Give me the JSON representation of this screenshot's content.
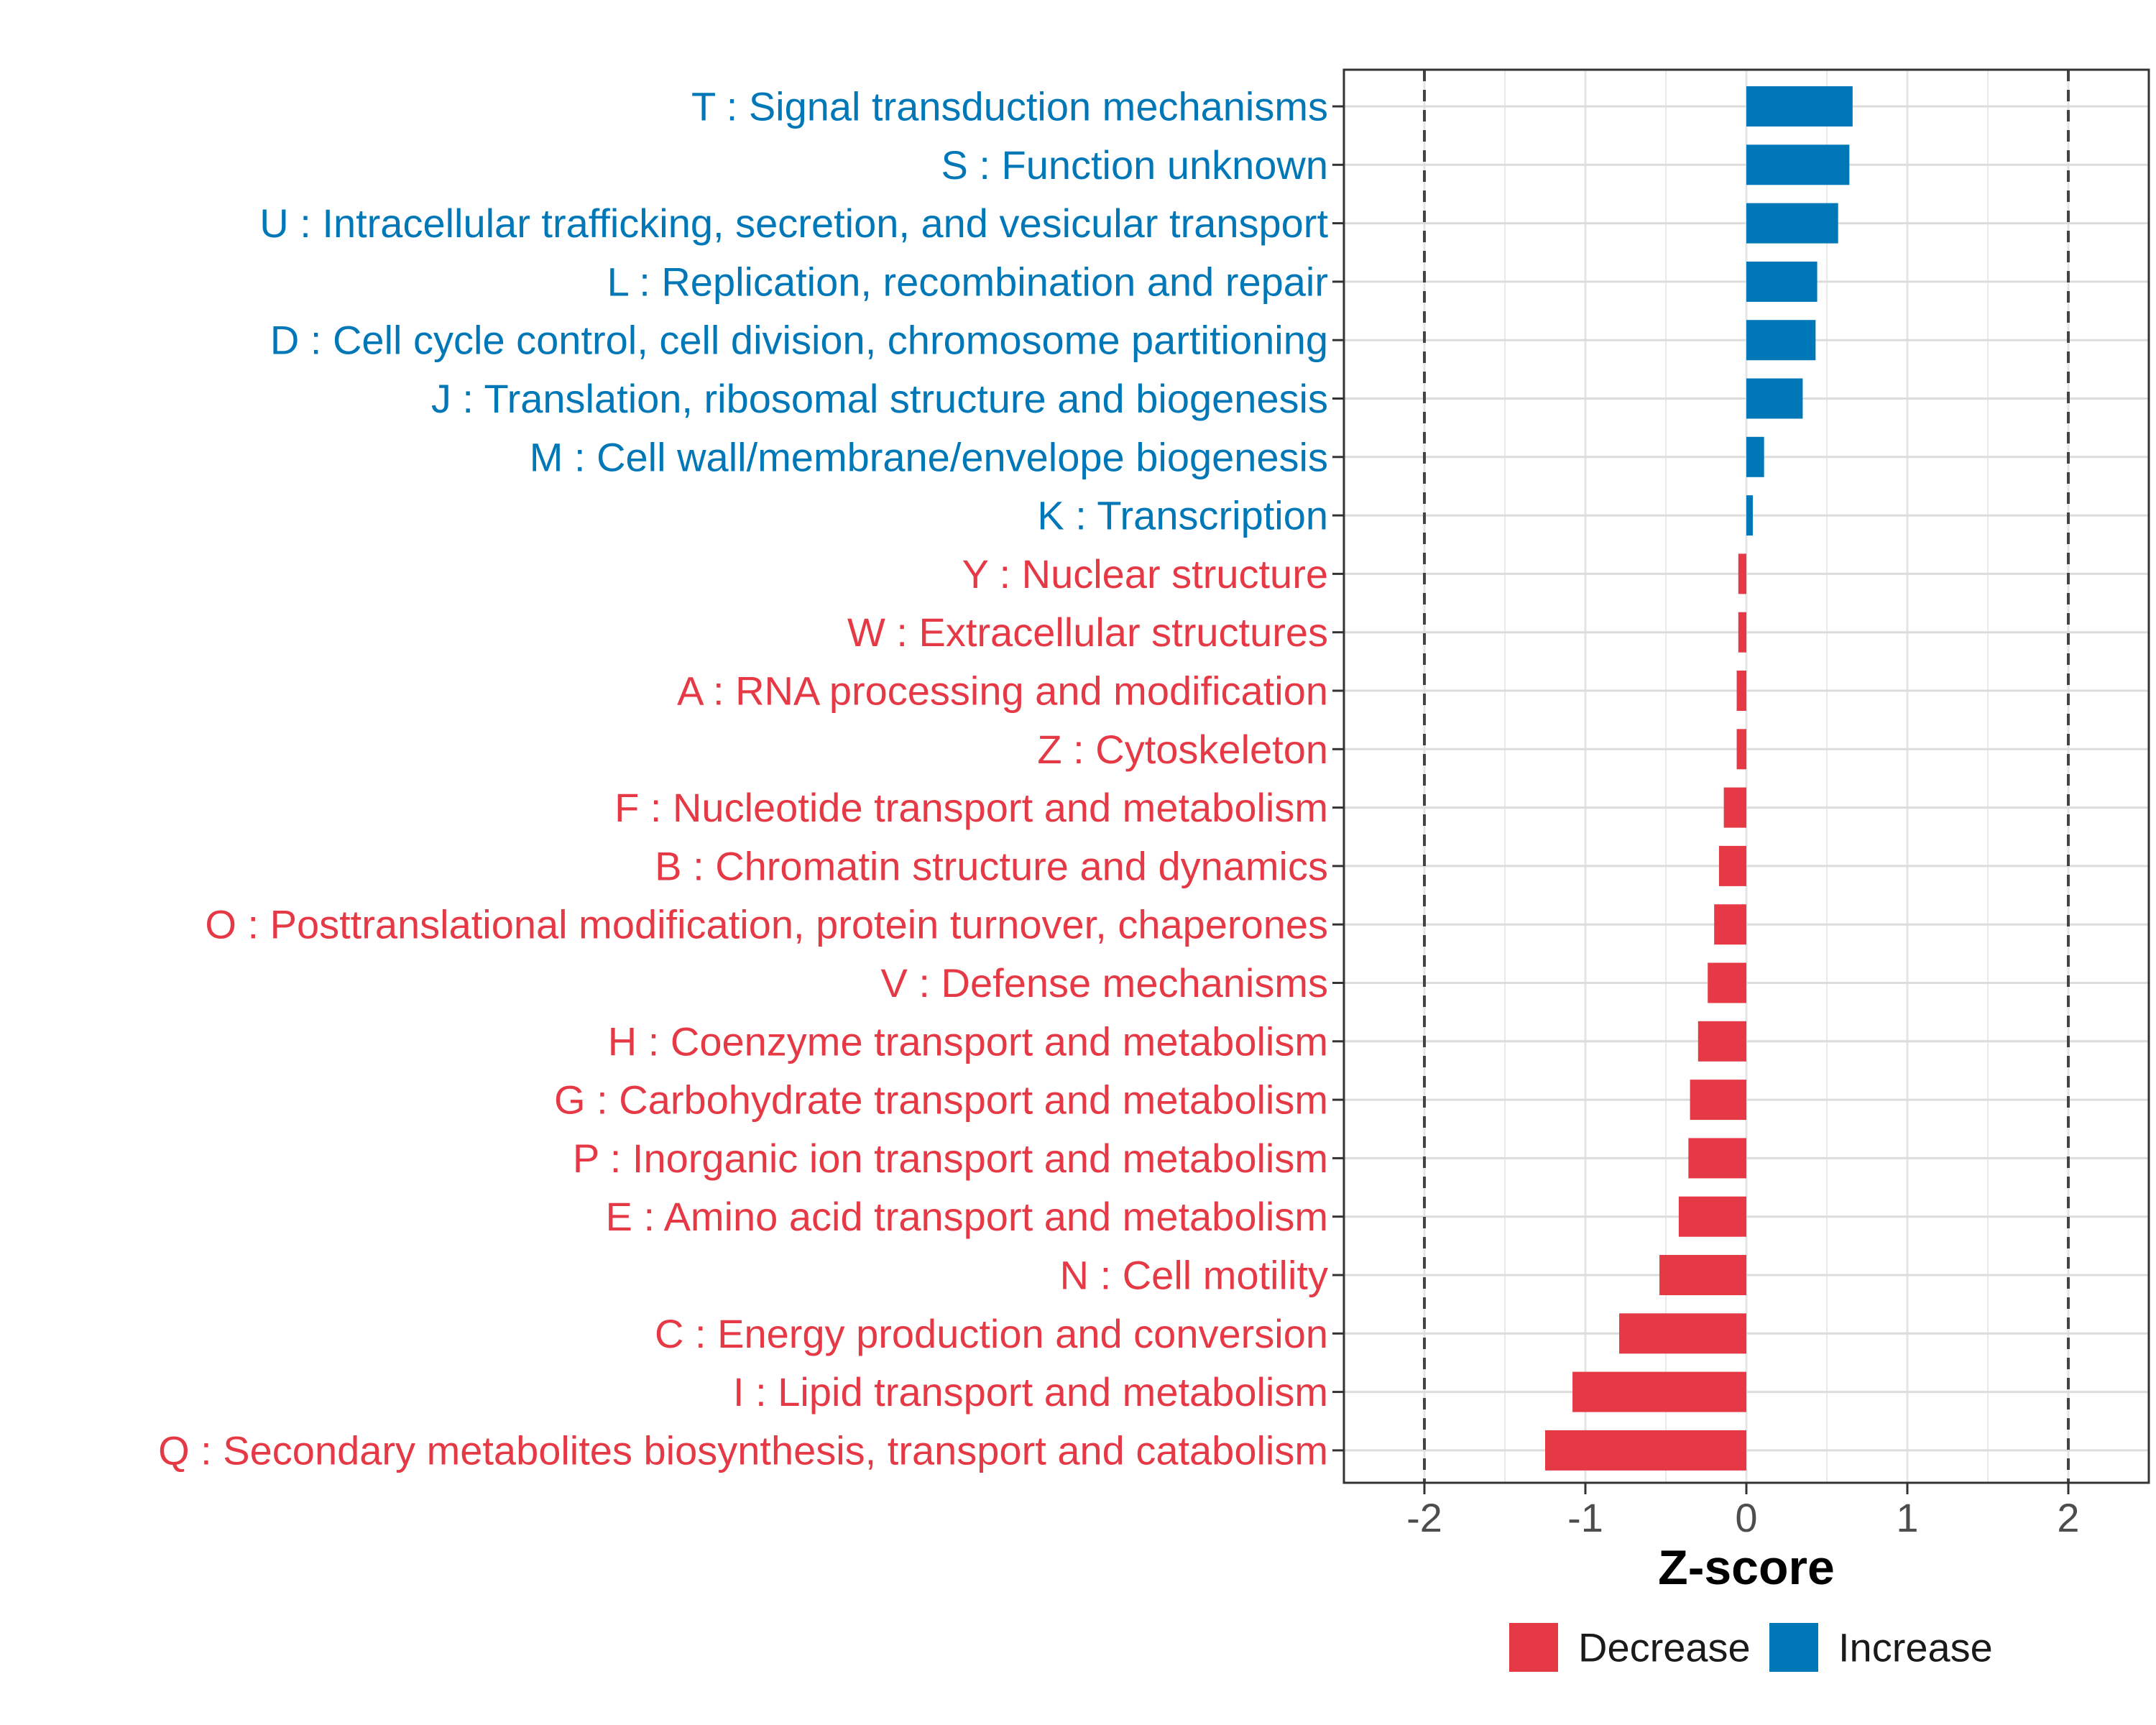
{
  "chart_data": {
    "type": "bar",
    "orientation": "horizontal",
    "xlabel": "Z-score",
    "ylabel": "",
    "xlim": [
      -2.5,
      2.5
    ],
    "x_ticks": [
      -2,
      -1,
      0,
      1,
      2
    ],
    "x_tick_labels": [
      "-2",
      "-1",
      "0",
      "1",
      "2"
    ],
    "reference_lines": [
      -2,
      2
    ],
    "grid": true,
    "legend_position": "bottom",
    "colors": {
      "Increase": "#0077b6",
      "Decrease": "#e63946"
    },
    "legend": [
      {
        "label": "Decrease",
        "color": "#e63946"
      },
      {
        "label": "Increase",
        "color": "#0077b6"
      }
    ],
    "categories": [
      {
        "label": "T : Signal transduction mechanisms",
        "value": 0.66,
        "direction": "Increase"
      },
      {
        "label": "S : Function unknown",
        "value": 0.64,
        "direction": "Increase"
      },
      {
        "label": "U : Intracellular trafficking, secretion, and vesicular transport",
        "value": 0.57,
        "direction": "Increase"
      },
      {
        "label": "L : Replication, recombination and repair",
        "value": 0.44,
        "direction": "Increase"
      },
      {
        "label": "D : Cell cycle control, cell division, chromosome partitioning",
        "value": 0.43,
        "direction": "Increase"
      },
      {
        "label": "J : Translation, ribosomal structure and biogenesis",
        "value": 0.35,
        "direction": "Increase"
      },
      {
        "label": "M : Cell wall/membrane/envelope biogenesis",
        "value": 0.11,
        "direction": "Increase"
      },
      {
        "label": "K : Transcription",
        "value": 0.04,
        "direction": "Increase"
      },
      {
        "label": "Y : Nuclear structure",
        "value": -0.05,
        "direction": "Decrease"
      },
      {
        "label": "W : Extracellular structures",
        "value": -0.05,
        "direction": "Decrease"
      },
      {
        "label": "A : RNA processing and modification",
        "value": -0.06,
        "direction": "Decrease"
      },
      {
        "label": "Z : Cytoskeleton",
        "value": -0.06,
        "direction": "Decrease"
      },
      {
        "label": "F : Nucleotide transport and metabolism",
        "value": -0.14,
        "direction": "Decrease"
      },
      {
        "label": "B : Chromatin structure and dynamics",
        "value": -0.17,
        "direction": "Decrease"
      },
      {
        "label": "O : Posttranslational modification, protein turnover, chaperones",
        "value": -0.2,
        "direction": "Decrease"
      },
      {
        "label": "V : Defense mechanisms",
        "value": -0.24,
        "direction": "Decrease"
      },
      {
        "label": "H : Coenzyme transport and metabolism",
        "value": -0.3,
        "direction": "Decrease"
      },
      {
        "label": "G : Carbohydrate transport and metabolism",
        "value": -0.35,
        "direction": "Decrease"
      },
      {
        "label": "P : Inorganic ion transport and metabolism",
        "value": -0.36,
        "direction": "Decrease"
      },
      {
        "label": "E : Amino acid transport and metabolism",
        "value": -0.42,
        "direction": "Decrease"
      },
      {
        "label": "N : Cell motility",
        "value": -0.54,
        "direction": "Decrease"
      },
      {
        "label": "C : Energy production and conversion",
        "value": -0.79,
        "direction": "Decrease"
      },
      {
        "label": "I : Lipid transport and metabolism",
        "value": -1.08,
        "direction": "Decrease"
      },
      {
        "label": "Q : Secondary metabolites biosynthesis, transport and catabolism",
        "value": -1.25,
        "direction": "Decrease"
      }
    ]
  }
}
